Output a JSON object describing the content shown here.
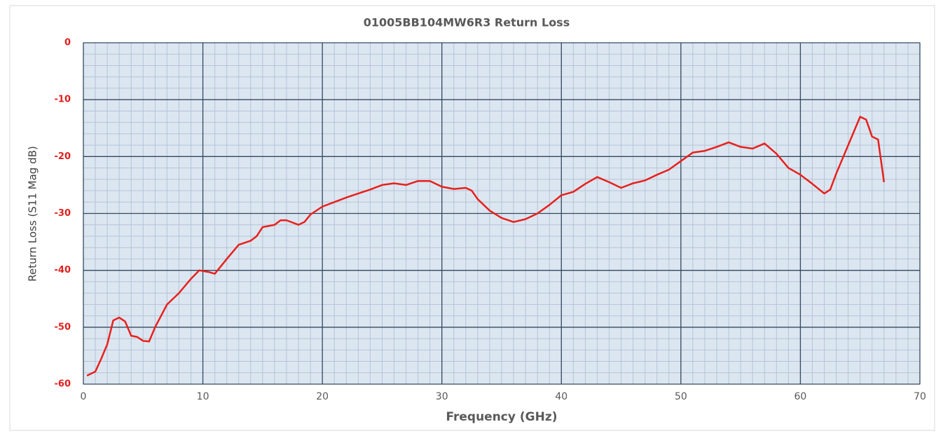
{
  "chart_data": {
    "type": "line",
    "title": "01005BB104MW6R3 Return Loss",
    "x_label": "Frequency (GHz)",
    "y_label": "Return Loss (S11 Mag dB)",
    "color": "#e8201c",
    "background": "#dce6f1",
    "grid": true,
    "minor_grid": {
      "x": 1,
      "y": 2
    },
    "xlim": [
      0,
      70
    ],
    "ylim": [
      -60,
      0
    ],
    "xticks": [
      0,
      10,
      20,
      30,
      40,
      50,
      60,
      70
    ],
    "yticks": [
      0,
      -10,
      -20,
      -30,
      -40,
      -50,
      -60
    ],
    "x": [
      0.3,
      1,
      1.5,
      2,
      2.5,
      3,
      3.5,
      4,
      4.5,
      5,
      5.5,
      6,
      7,
      8,
      9,
      9.7,
      10.5,
      11,
      12,
      13,
      14,
      14.5,
      15,
      16,
      16.5,
      17,
      18,
      18.5,
      19,
      20,
      21,
      22,
      23,
      24,
      25,
      26,
      27,
      28,
      29,
      30,
      31,
      32,
      32.5,
      33,
      34,
      35,
      36,
      37,
      38,
      39,
      40,
      41,
      42,
      43,
      44,
      45,
      46,
      47,
      48,
      49,
      50,
      51,
      52,
      53,
      54,
      55,
      56,
      57,
      58,
      59,
      60,
      61,
      62,
      62.5,
      63,
      64,
      65,
      65.5,
      66,
      66.5,
      67
    ],
    "values": [
      -58.5,
      -57.8,
      -55.5,
      -53,
      -48.8,
      -48.3,
      -49,
      -51.5,
      -51.7,
      -52.4,
      -52.5,
      -50,
      -46,
      -44,
      -41.5,
      -40,
      -40.3,
      -40.6,
      -38,
      -35.5,
      -34.8,
      -34,
      -32.4,
      -32,
      -31.2,
      -31.2,
      -32,
      -31.5,
      -30.2,
      -28.8,
      -28,
      -27.2,
      -26.5,
      -25.8,
      -25,
      -24.7,
      -25,
      -24.3,
      -24.3,
      -25.3,
      -25.7,
      -25.5,
      -26,
      -27.5,
      -29.5,
      -30.8,
      -31.5,
      -31,
      -30,
      -28.5,
      -26.8,
      -26.2,
      -24.8,
      -23.6,
      -24.5,
      -25.5,
      -24.7,
      -24.2,
      -23.2,
      -22.3,
      -20.8,
      -19.3,
      -19,
      -18.3,
      -17.5,
      -18.3,
      -18.6,
      -17.7,
      -19.5,
      -22,
      -23.2,
      -24.8,
      -26.5,
      -25.8,
      -23,
      -18,
      -13,
      -13.5,
      -16.5,
      -17,
      -24.5
    ]
  }
}
